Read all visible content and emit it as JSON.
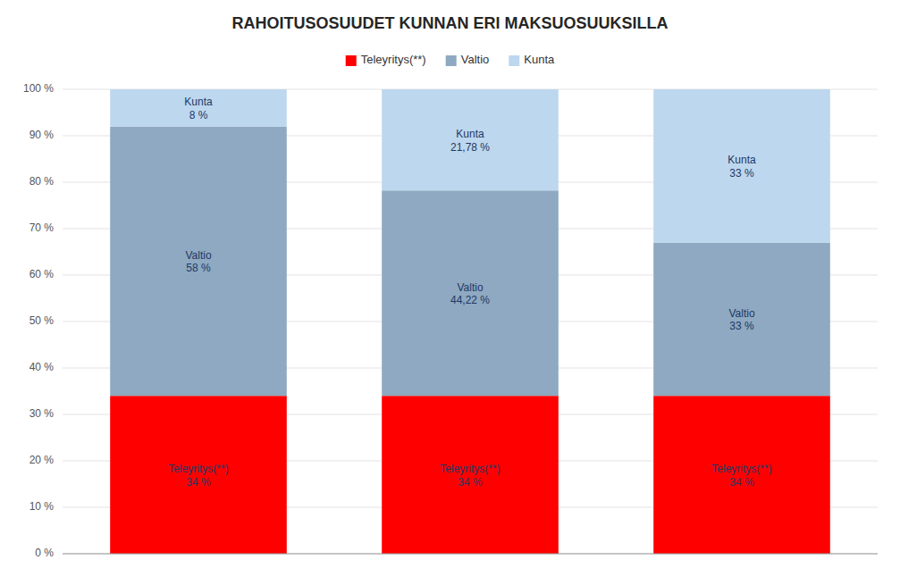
{
  "chart_data": {
    "type": "bar",
    "title": "RAHOITUSOSUUDET KUNNAN ERI MAKSUOSUUKSILLA",
    "stacked": true,
    "categories": [
      null,
      null,
      null
    ],
    "series": [
      {
        "name": "Teleyritys(**)",
        "color": "#FF0000",
        "values": [
          34,
          34,
          34
        ],
        "value_labels": [
          "34 %",
          "34 %",
          "34 %"
        ]
      },
      {
        "name": "Valtio",
        "color": "#8EA9C1",
        "values": [
          58,
          44.22,
          33
        ],
        "value_labels": [
          "58 %",
          "44,22 %",
          "33 %"
        ]
      },
      {
        "name": "Kunta",
        "color": "#BDD7EE",
        "values": [
          8,
          21.78,
          33
        ],
        "value_labels": [
          "8 %",
          "21,78 %",
          "33 %"
        ]
      }
    ],
    "data_labels": true,
    "ylim": [
      0,
      100
    ],
    "yticks": [
      {
        "value": 0,
        "label": "0 %"
      },
      {
        "value": 10,
        "label": "10 %"
      },
      {
        "value": 20,
        "label": "20 %"
      },
      {
        "value": 30,
        "label": "30 %"
      },
      {
        "value": 40,
        "label": "40 %"
      },
      {
        "value": 50,
        "label": "50 %"
      },
      {
        "value": 60,
        "label": "60 %"
      },
      {
        "value": 70,
        "label": "70 %"
      },
      {
        "value": 80,
        "label": "80 %"
      },
      {
        "value": 90,
        "label": "90 %"
      },
      {
        "value": 100,
        "label": "100 %"
      }
    ],
    "grid": true,
    "legend": "top",
    "tick_labels": "y"
  }
}
